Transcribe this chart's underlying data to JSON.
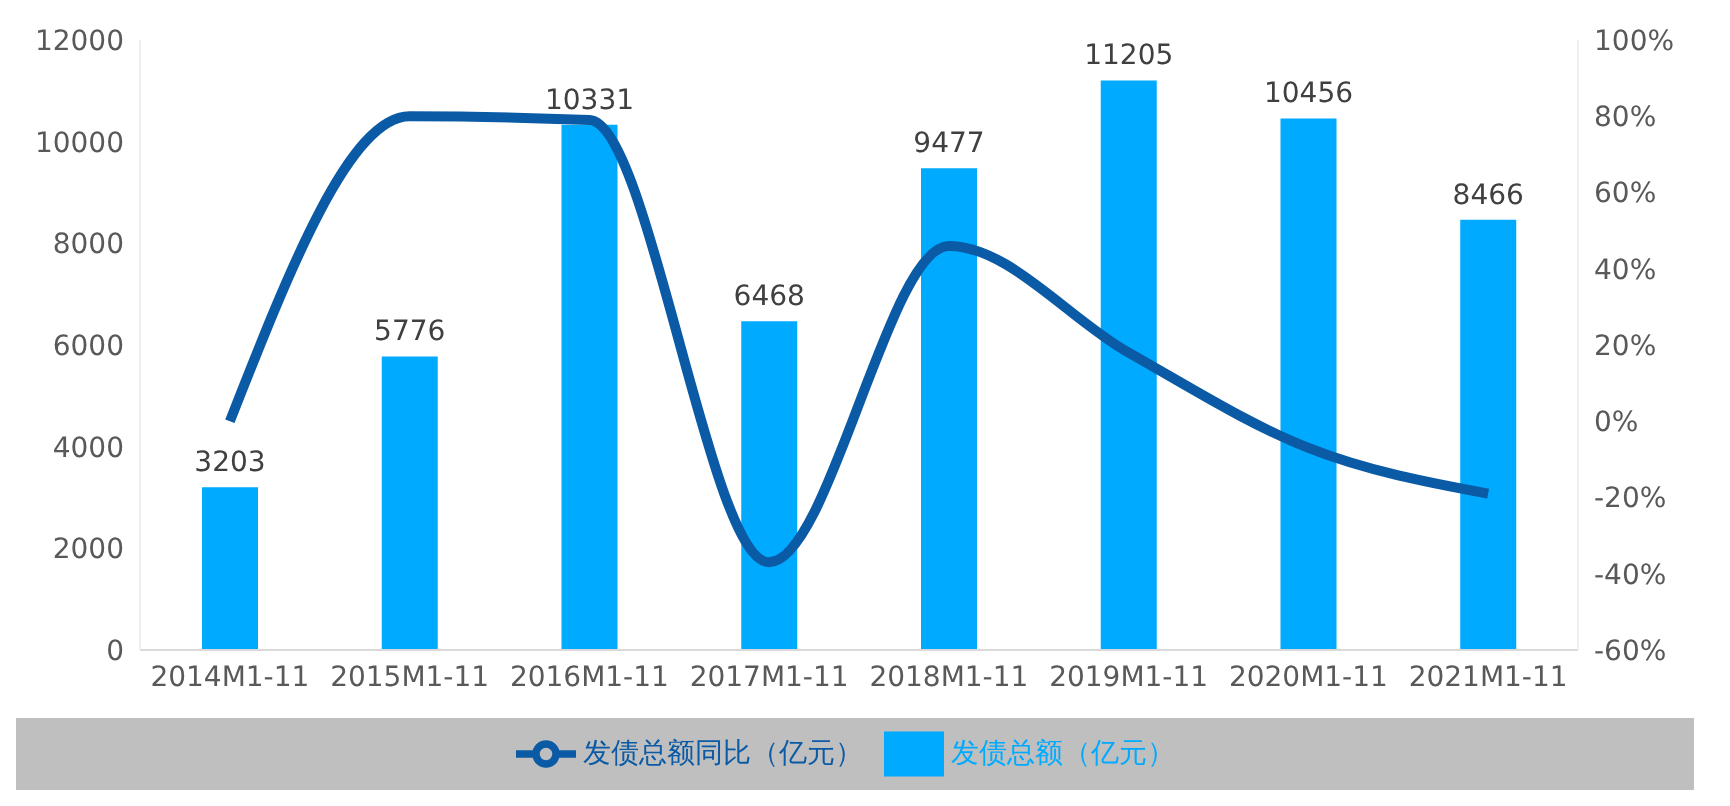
{
  "chart_data": {
    "type": "bar",
    "categories": [
      "2014M1-11",
      "2015M1-11",
      "2016M1-11",
      "2017M1-11",
      "2018M1-11",
      "2019M1-11",
      "2020M1-11",
      "2021M1-11"
    ],
    "series": [
      {
        "name": "发债总额（亿元）",
        "color": "#00aaff",
        "values": [
          3203,
          5776,
          10331,
          6468,
          9477,
          11205,
          10456,
          8466
        ],
        "value_labels": [
          "3203",
          "5776",
          "10331",
          "6468",
          "9477",
          "11205",
          "10456",
          "8466"
        ]
      },
      {
        "name": "发债总额同比（亿元）",
        "type": "line",
        "axis": "y2",
        "color": "#0b5aa5",
        "values": [
          0,
          80,
          79,
          -37,
          46,
          18,
          -7,
          -19
        ]
      }
    ],
    "ylim": [
      0,
      12000
    ],
    "yticks": [
      0,
      2000,
      4000,
      6000,
      8000,
      10000,
      12000
    ],
    "y2lim": [
      -60,
      100
    ],
    "y2ticks": [
      {
        "value": -60,
        "label": "-60%"
      },
      {
        "value": -40,
        "label": "-40%"
      },
      {
        "value": -20,
        "label": "-20%"
      },
      {
        "value": 0,
        "label": "0%"
      },
      {
        "value": 20,
        "label": "20%"
      },
      {
        "value": 40,
        "label": "40%"
      },
      {
        "value": 60,
        "label": "60%"
      },
      {
        "value": 80,
        "label": "80%"
      },
      {
        "value": 100,
        "label": "100%"
      }
    ],
    "grid": false,
    "legend": "bottom",
    "marker": "none",
    "line_style": "solid"
  }
}
